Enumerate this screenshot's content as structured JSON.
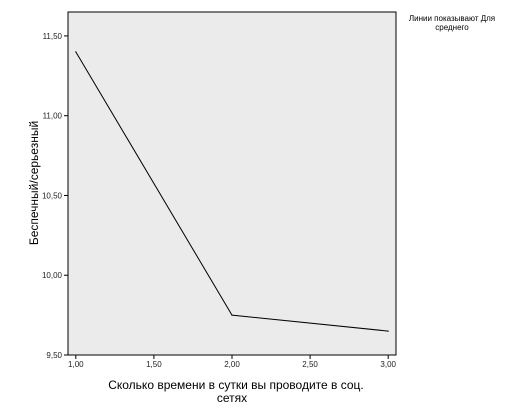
{
  "chart_data": {
    "type": "line",
    "x": [
      1.0,
      2.0,
      3.0
    ],
    "series": [
      {
        "values": [
          11.4,
          9.75,
          9.65
        ],
        "color": "#000000"
      }
    ],
    "xlim": [
      0.95,
      3.05
    ],
    "ylim": [
      9.5,
      11.65
    ],
    "xticks": [
      1.0,
      1.5,
      2.0,
      2.5,
      3.0
    ],
    "xtick_labels": [
      "1,00",
      "1,50",
      "2,00",
      "2,50",
      "3,00"
    ],
    "yticks": [
      9.5,
      10.0,
      10.5,
      11.0,
      11.5
    ],
    "ytick_labels": [
      "9,50",
      "10,00",
      "10,50",
      "11,00",
      "11,50"
    ],
    "xlabel_lines": [
      "Сколько времени в сутки вы проводите в соц.",
      "сетях"
    ],
    "ylabel": "Беспечный/серьезный",
    "legend_lines": [
      "Линии показывают Для",
      "среднего"
    ],
    "legend_position": "top-right",
    "plot_background": "#ebebeb",
    "grid": false
  }
}
